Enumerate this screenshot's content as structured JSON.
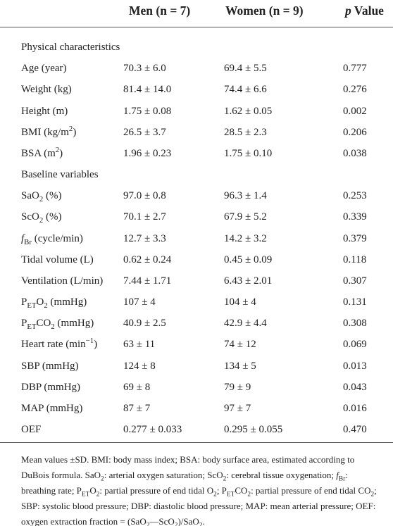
{
  "table": {
    "header": {
      "men": "Men (n = 7)",
      "women": "Women (n = 9)",
      "p_value": [
        {
          "i": "p"
        },
        " Value"
      ]
    },
    "sections": [
      {
        "title": "Physical characteristics",
        "rows": [
          {
            "label": [
              "Age (year)"
            ],
            "men": "70.3 ± 6.0",
            "women": "69.4 ± 5.5",
            "p": "0.777"
          },
          {
            "label": [
              "Weight (kg)"
            ],
            "men": "81.4 ± 14.0",
            "women": "74.4 ± 6.6",
            "p": "0.276"
          },
          {
            "label": [
              "Height (m)"
            ],
            "men": "1.75 ± 0.08",
            "women": "1.62 ± 0.05",
            "p": "0.002"
          },
          {
            "label": [
              "BMI (kg/m",
              {
                "sup": "2"
              },
              ")"
            ],
            "men": "26.5 ± 3.7",
            "women": "28.5 ± 2.3",
            "p": "0.206"
          },
          {
            "label": [
              "BSA (m",
              {
                "sup": "2"
              },
              ")"
            ],
            "men": "1.96 ± 0.23",
            "women": "1.75 ± 0.10",
            "p": "0.038"
          }
        ]
      },
      {
        "title": "Baseline variables",
        "rows": [
          {
            "label": [
              "SaO",
              {
                "sub": "2"
              },
              " (%)"
            ],
            "men": "97.0 ± 0.8",
            "women": "96.3 ± 1.4",
            "p": "0.253"
          },
          {
            "label": [
              "ScO",
              {
                "sub": "2"
              },
              " (%)"
            ],
            "men": "70.1 ± 2.7",
            "women": "67.9 ± 5.2",
            "p": "0.339"
          },
          {
            "label": [
              {
                "i": "f"
              },
              {
                "sub": "Br"
              },
              " (cycle/min)"
            ],
            "men": "12.7 ± 3.3",
            "women": "14.2 ± 3.2",
            "p": "0.379"
          },
          {
            "label": [
              "Tidal volume (L)"
            ],
            "men": "0.62 ± 0.24",
            "women": "0.45 ± 0.09",
            "p": "0.118"
          },
          {
            "label": [
              "Ventilation (L/min)"
            ],
            "men": "7.44 ± 1.71",
            "women": "6.43 ± 2.01",
            "p": "0.307"
          },
          {
            "label": [
              "P",
              {
                "sub": "ET"
              },
              "O",
              {
                "sub": "2"
              },
              " (mmHg)"
            ],
            "men": "107 ± 4",
            "women": "104 ± 4",
            "p": "0.131"
          },
          {
            "label": [
              "P",
              {
                "sub": "ET"
              },
              "CO",
              {
                "sub": "2"
              },
              " (mmHg)"
            ],
            "men": "40.9 ± 2.5",
            "women": "42.9 ± 4.4",
            "p": "0.308"
          },
          {
            "label": [
              "Heart rate (min",
              {
                "sup": "−1"
              },
              ")"
            ],
            "men": "63 ± 11",
            "women": "74 ± 12",
            "p": "0.069"
          },
          {
            "label": [
              "SBP (mmHg)"
            ],
            "men": "124 ± 8",
            "women": "134 ± 5",
            "p": "0.013"
          },
          {
            "label": [
              "DBP (mmHg)"
            ],
            "men": "69 ± 8",
            "women": "79 ± 9",
            "p": "0.043"
          },
          {
            "label": [
              "MAP (mmHg)"
            ],
            "men": "87 ± 7",
            "women": "97 ± 7",
            "p": "0.016"
          },
          {
            "label": [
              "OEF"
            ],
            "men": "0.277 ± 0.033",
            "women": "0.295 ± 0.055",
            "p": "0.470"
          }
        ]
      }
    ],
    "footnote": [
      "Mean values ±SD. BMI: body mass index; BSA: body surface area, estimated according to DuBois formula. SaO",
      {
        "sub": "2"
      },
      ": arterial oxygen saturation; ScO",
      {
        "sub": "2"
      },
      ": cerebral tissue oxygenation; ",
      {
        "i": "f"
      },
      {
        "sub": "Br"
      },
      ": breathing rate; P",
      {
        "sub": "ET"
      },
      "O",
      {
        "sub": "2"
      },
      ": partial pressure of end tidal O",
      {
        "sub": "2"
      },
      "; P",
      {
        "sub": "ET"
      },
      "CO",
      {
        "sub": "2"
      },
      ": partial pressure of end tidal CO",
      {
        "sub": "2"
      },
      "; SBP: systolic blood pressure; DBP: diastolic blood pressure; MAP: mean arterial pressure; OEF: oxygen extraction fraction = (SaO",
      {
        "sub": "2"
      },
      "—ScO",
      {
        "sub": "2"
      },
      ")/SaO",
      {
        "sub": "2"
      },
      "."
    ]
  }
}
